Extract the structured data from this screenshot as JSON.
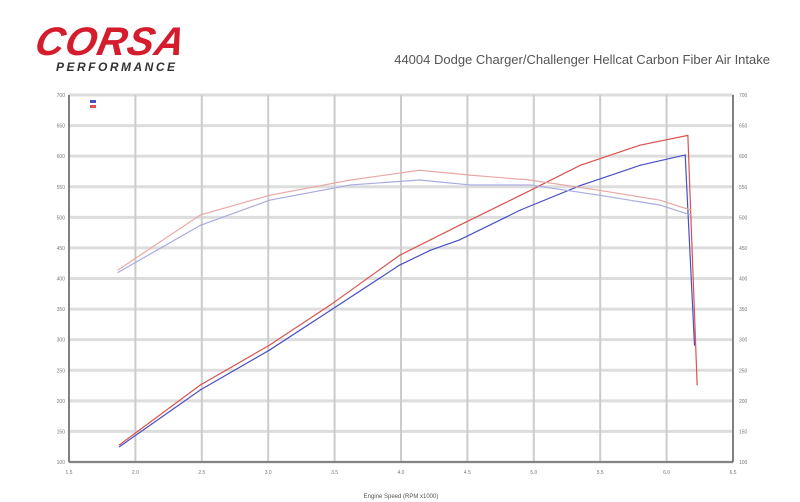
{
  "logo": {
    "main": "CORSA",
    "sub": "PERFORMANCE"
  },
  "chart_data": {
    "type": "line",
    "title": "44004 Dodge Charger/Challenger Hellcat Carbon Fiber Air Intake",
    "xlabel": "Engine Speed (RPM x1000)",
    "xlim": [
      1.5,
      6.5
    ],
    "ylim": [
      100,
      700
    ],
    "x_ticks": [
      "1.5",
      "2.0",
      "2.5",
      "3.0",
      "3.5",
      "4.0",
      "4.5",
      "5.0",
      "5.5",
      "6.0",
      "6.5"
    ],
    "y_ticks": [
      "100",
      "150",
      "200",
      "250",
      "300",
      "350",
      "400",
      "450",
      "500",
      "550",
      "600",
      "650",
      "700"
    ],
    "grid": true,
    "legend": "top-left",
    "colors": {
      "red": "#d9534f",
      "blue": "#4a4fc4",
      "red_light": "#e8a9a6",
      "blue_light": "#a9abe0"
    },
    "series": [
      {
        "kind": "power",
        "color": "red",
        "x": [
          1.88,
          2.49,
          3.01,
          3.47,
          3.99,
          4.22,
          4.44,
          4.9,
          5.35,
          5.8,
          6.16,
          6.23
        ],
        "y": [
          128,
          226,
          291,
          357,
          438,
          463,
          487,
          536,
          585,
          618,
          634,
          226
        ]
      },
      {
        "kind": "power",
        "color": "blue",
        "x": [
          1.88,
          2.49,
          3.01,
          3.47,
          3.99,
          4.22,
          4.44,
          4.9,
          5.35,
          5.8,
          6.14,
          6.21
        ],
        "y": [
          125,
          218,
          283,
          348,
          422,
          446,
          463,
          512,
          552,
          585,
          602,
          291
        ]
      },
      {
        "kind": "torque",
        "color": "red_light",
        "x": [
          1.87,
          2.49,
          3.01,
          3.62,
          4.14,
          4.52,
          4.97,
          5.5,
          5.95,
          6.18
        ],
        "y": [
          414,
          504,
          536,
          561,
          577,
          569,
          561,
          544,
          528,
          512
        ]
      },
      {
        "kind": "torque",
        "color": "blue_light",
        "x": [
          1.87,
          2.49,
          3.01,
          3.62,
          4.14,
          4.52,
          4.97,
          5.5,
          5.95,
          6.18
        ],
        "y": [
          410,
          487,
          528,
          553,
          561,
          553,
          553,
          536,
          520,
          504
        ]
      }
    ]
  }
}
